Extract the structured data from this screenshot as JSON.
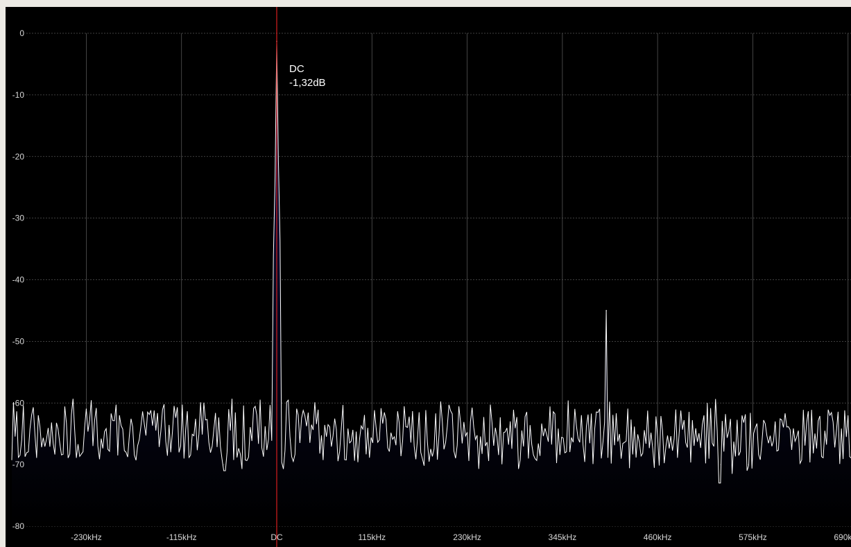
{
  "chart_data": {
    "type": "area",
    "title": "",
    "xlabel": "",
    "ylabel": "",
    "x_unit": "kHz",
    "y_unit": "dB",
    "xlim": [
      -320,
      700
    ],
    "ylim": [
      -80,
      0
    ],
    "y_ticks": [
      0,
      -10,
      -20,
      -30,
      -40,
      -50,
      -60,
      -70,
      -80
    ],
    "y_tick_labels": [
      "0",
      "-10",
      "-20",
      "-30",
      "-40",
      "-50",
      "-60",
      "-70",
      "-80"
    ],
    "x_ticks": [
      -230,
      -115,
      0,
      115,
      230,
      345,
      460,
      575,
      690
    ],
    "x_tick_labels": [
      "-230kHz",
      "-115kHz",
      "DC",
      "115kHz",
      "230kHz",
      "345kHz",
      "460kHz",
      "575kHz",
      "690kHz"
    ],
    "grid": true,
    "legend": "none",
    "noise_floor_db": -65,
    "noise_spread_db": 5,
    "series": [
      {
        "peaks": [
          {
            "x": 0,
            "y": -1.32
          },
          {
            "x": 398,
            "y": -45
          }
        ],
        "dips": [
          {
            "x": -63,
            "y": -71
          },
          {
            "x": 535,
            "y": -73
          },
          {
            "x": 550,
            "y": -71.5
          },
          {
            "x": 568,
            "y": -71
          }
        ]
      }
    ],
    "marker": {
      "x": 0,
      "label": "DC",
      "value_text": "-1,32dB",
      "color": "#d81e1e"
    },
    "colors": {
      "background": "#000000",
      "grid": "#555555",
      "trace": "#ffffff",
      "fill_top": "#0d0f45",
      "fill_bottom": "#000000",
      "axis_text": "#d8d8d8"
    }
  }
}
